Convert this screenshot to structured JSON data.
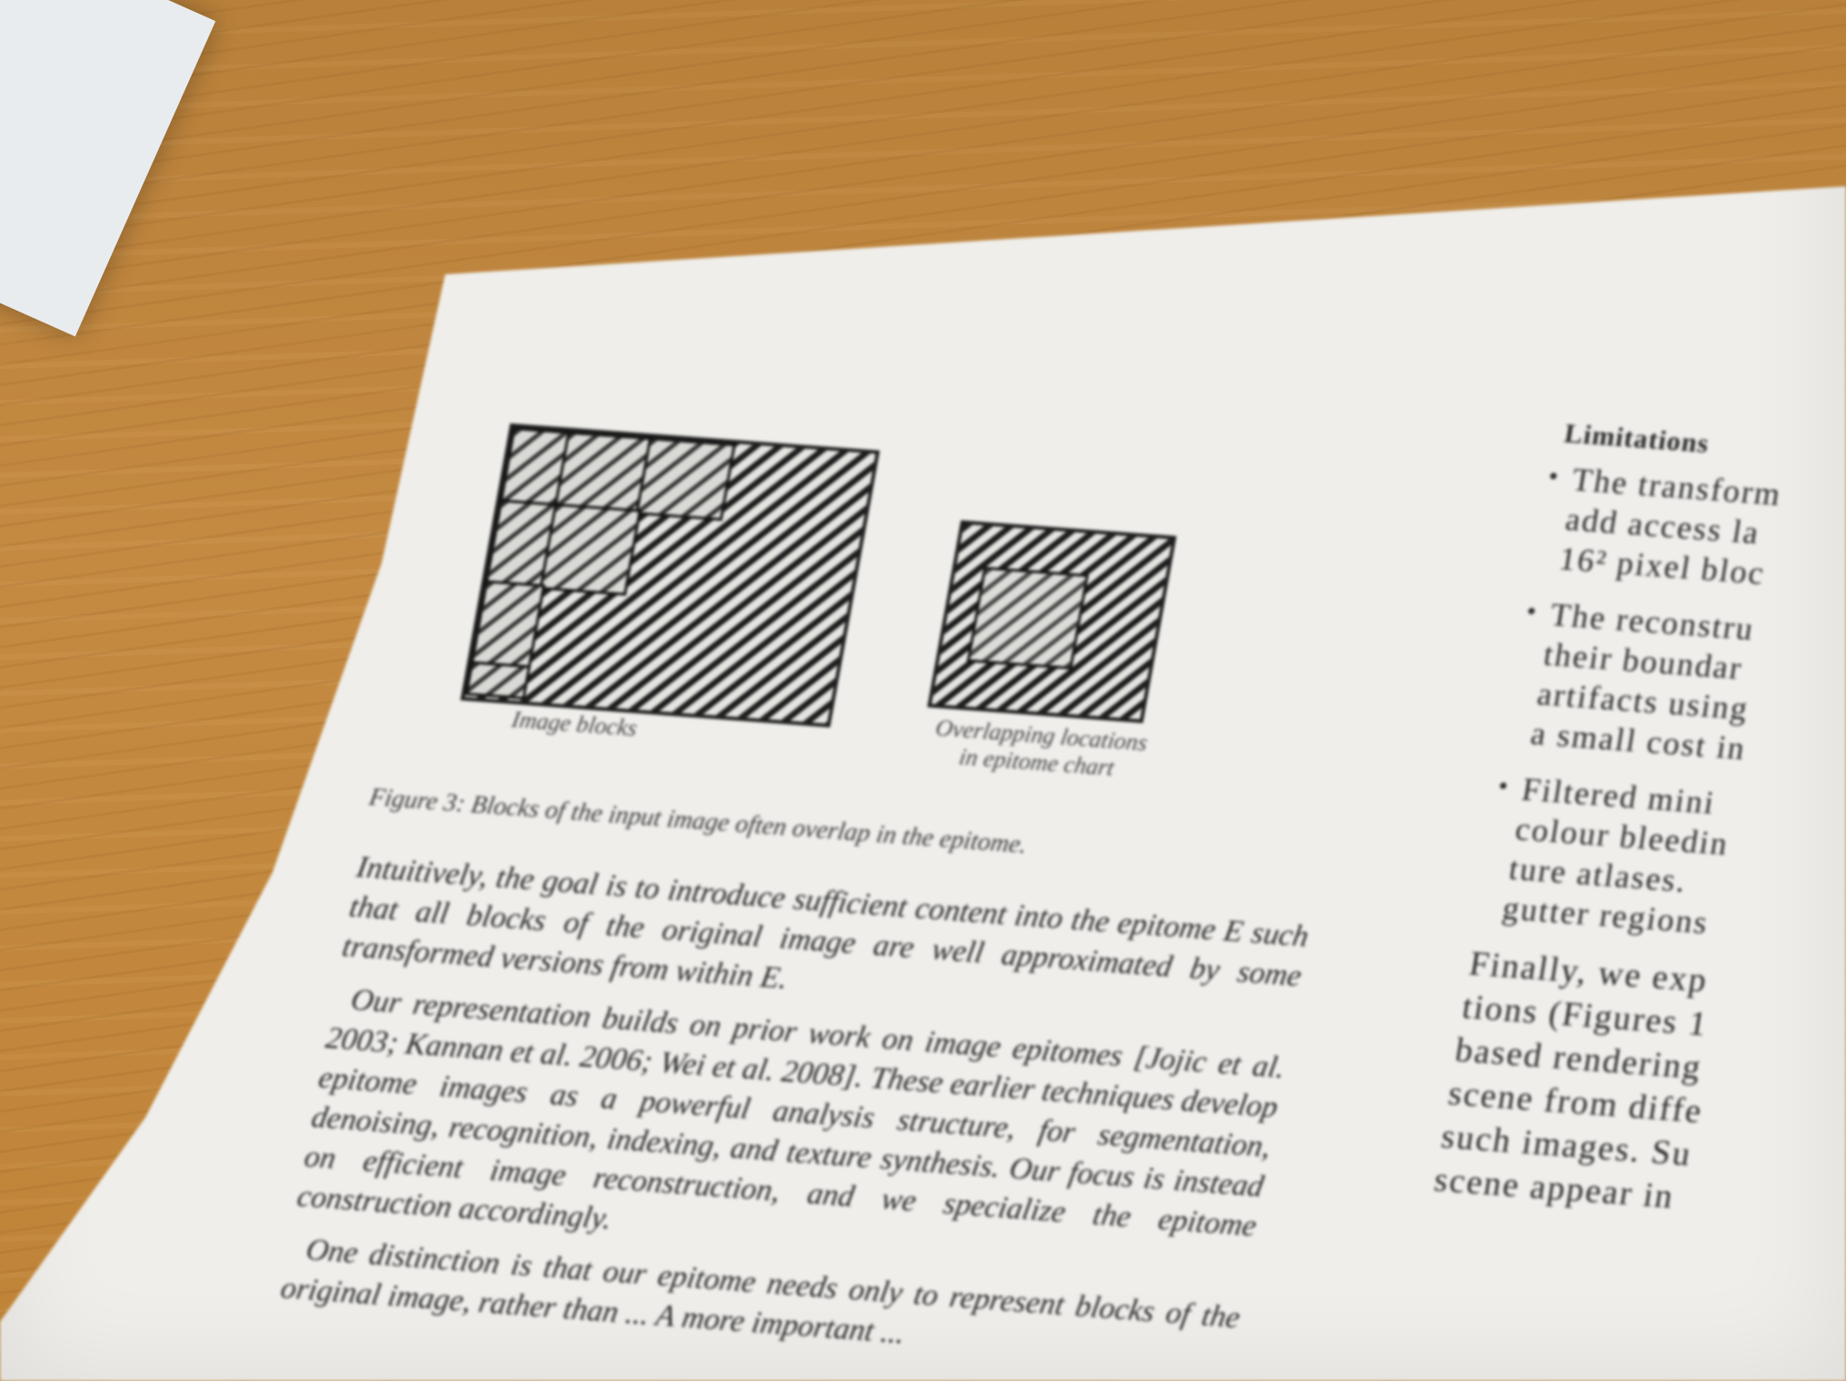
{
  "figure": {
    "left_label": "Image blocks",
    "right_label_line1": "Overlapping locations",
    "right_label_line2": "in epitome chart",
    "caption": "Figure 3: Blocks of the input image often overlap in the epitome."
  },
  "body_paragraphs": [
    "Intuitively, the goal is to introduce sufficient content into the epitome E such that all blocks of the original image are well approximated by some transformed versions from within E.",
    "Our representation builds on prior work on image epitomes [Jojic et al. 2003; Kannan et al. 2006; Wei et al. 2008]. These earlier techniques develop epitome images as a powerful analysis structure, for segmentation, denoising, recognition, indexing, and texture synthesis. Our focus is instead on efficient image reconstruction, and we specialize the epitome construction accordingly.",
    "One distinction is that our epitome needs only to represent blocks of the original image, rather than ... A more important ..."
  ],
  "right_column": {
    "heading": "Limitations",
    "bullets": [
      [
        "The transform",
        "add access la",
        "16² pixel bloc"
      ],
      [
        "The reconstru",
        "their boundar",
        "artifacts using",
        "a small cost in"
      ],
      [
        "Filtered mini",
        "colour bleedin",
        "ture atlases.",
        "gutter regions"
      ]
    ],
    "trailing_lines": [
      "Finally, we exp",
      "tions (Figures 1",
      "based rendering",
      "scene from diffe",
      "such images. Su",
      "scene appear in"
    ]
  }
}
